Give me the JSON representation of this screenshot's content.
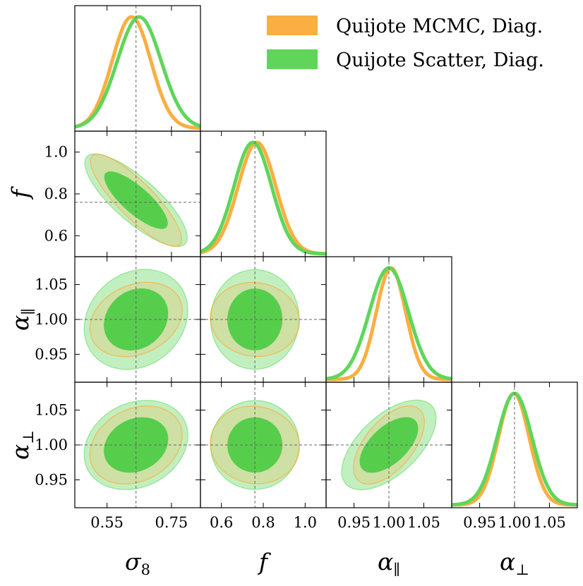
{
  "chart_data": {
    "type": "corner",
    "legend_placement": "top-right",
    "series": [
      {
        "name": "Quijote MCMC, Diag.",
        "color": "#fbae41"
      },
      {
        "name": "Quijote Scatter, Diag.",
        "color": "#5fd65a"
      }
    ],
    "parameters": [
      {
        "key": "sigma8",
        "label": "σ",
        "subscript": "8",
        "range": [
          0.45,
          0.84
        ],
        "ticks": [
          "0.55",
          "0.75"
        ],
        "tick_values": [
          0.55,
          0.75
        ],
        "truth": 0.64
      },
      {
        "key": "f",
        "label": "f",
        "subscript": "",
        "range": [
          0.5,
          1.1
        ],
        "ticks": [
          "0.6",
          "0.8",
          "1.0"
        ],
        "tick_values": [
          0.6,
          0.8,
          1.0
        ],
        "truth": 0.76
      },
      {
        "key": "alpha_par",
        "label": "α",
        "subscript": "∥",
        "range": [
          0.91,
          1.09
        ],
        "ticks": [
          "0.95",
          "1.00",
          "1.05"
        ],
        "tick_values": [
          0.95,
          1.0,
          1.05
        ],
        "truth": 1.0
      },
      {
        "key": "alpha_perp",
        "label": "α",
        "subscript": "⊥",
        "range": [
          0.91,
          1.09
        ],
        "ticks": [
          "0.95",
          "1.00",
          "1.05"
        ],
        "tick_values": [
          0.95,
          1.0,
          1.05
        ],
        "truth": 1.0
      }
    ],
    "marginals": {
      "sigma8": {
        "mcmc": {
          "mean": 0.626,
          "sd": 0.06
        },
        "scatter": {
          "mean": 0.65,
          "sd": 0.068
        }
      },
      "f": {
        "mcmc": {
          "mean": 0.77,
          "sd": 0.09
        },
        "scatter": {
          "mean": 0.75,
          "sd": 0.09
        }
      },
      "alpha_par": {
        "mcmc": {
          "mean": 1.003,
          "sd": 0.021
        },
        "scatter": {
          "mean": 1.0,
          "sd": 0.028
        }
      },
      "alpha_perp": {
        "mcmc": {
          "mean": 0.999,
          "sd": 0.022
        },
        "scatter": {
          "mean": 1.0,
          "sd": 0.025
        }
      }
    },
    "joint_2d": [
      {
        "x": "sigma8",
        "y": "f",
        "center": [
          0.64,
          0.77
        ],
        "scatter": {
          "sx": 0.068,
          "sy": 0.09,
          "rho": -0.82
        },
        "mcmc": {
          "sx": 0.06,
          "sy": 0.09,
          "rho": -0.86
        }
      },
      {
        "x": "sigma8",
        "y": "alpha_par",
        "center": [
          0.64,
          1.0
        ],
        "scatter": {
          "sx": 0.068,
          "sy": 0.028,
          "rho": 0.12
        },
        "mcmc": {
          "sx": 0.06,
          "sy": 0.021,
          "rho": 0.2
        }
      },
      {
        "x": "f",
        "y": "alpha_par",
        "center": [
          0.76,
          1.0
        ],
        "scatter": {
          "sx": 0.09,
          "sy": 0.028,
          "rho": -0.05
        },
        "mcmc": {
          "sx": 0.09,
          "sy": 0.021,
          "rho": -0.1
        }
      },
      {
        "x": "sigma8",
        "y": "alpha_perp",
        "center": [
          0.64,
          1.0
        ],
        "scatter": {
          "sx": 0.068,
          "sy": 0.025,
          "rho": 0.15
        },
        "mcmc": {
          "sx": 0.06,
          "sy": 0.022,
          "rho": 0.2
        }
      },
      {
        "x": "f",
        "y": "alpha_perp",
        "center": [
          0.76,
          1.0
        ],
        "scatter": {
          "sx": 0.09,
          "sy": 0.025,
          "rho": -0.05
        },
        "mcmc": {
          "sx": 0.09,
          "sy": 0.022,
          "rho": -0.1
        }
      },
      {
        "x": "alpha_par",
        "y": "alpha_perp",
        "center": [
          1.0,
          1.0
        ],
        "scatter": {
          "sx": 0.028,
          "sy": 0.025,
          "rho": 0.55
        },
        "mcmc": {
          "sx": 0.021,
          "sy": 0.022,
          "rho": 0.55
        }
      }
    ]
  }
}
